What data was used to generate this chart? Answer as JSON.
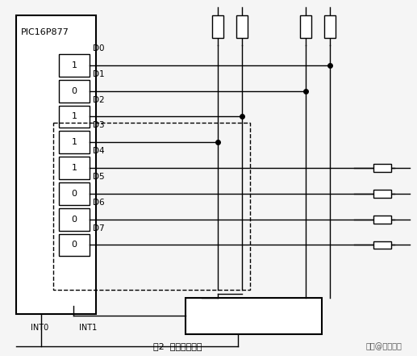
{
  "fig_width": 5.17,
  "fig_height": 4.41,
  "dpi": 100,
  "bg_color": "#f5f5f5",
  "title": "图2  线反转法原理",
  "watermark": "头条@小魁说事",
  "chip_label": "PIC16P877",
  "vals": [
    "1",
    "0",
    "1",
    "1",
    "1",
    "0",
    "0",
    "0"
  ],
  "dlabels": [
    "D0",
    "D1",
    "D2",
    "D3",
    "D4",
    "D5",
    "D6",
    "D7"
  ],
  "lw": 1.0,
  "color": "#000000"
}
